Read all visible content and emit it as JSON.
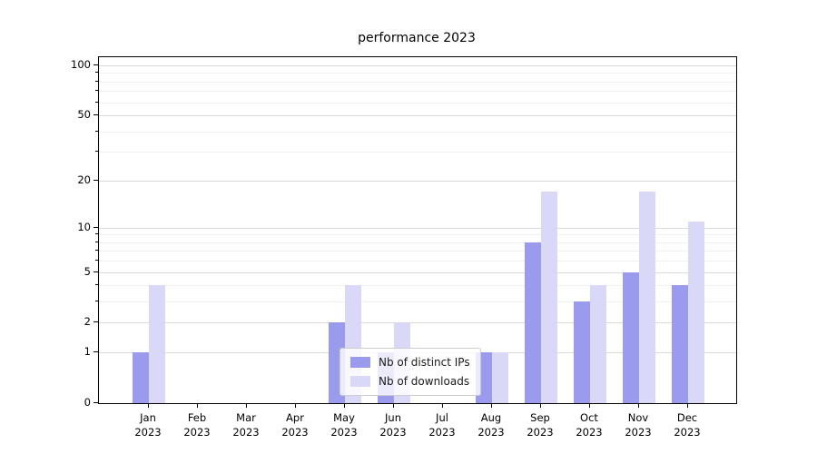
{
  "chart_data": {
    "type": "bar",
    "title": "performance 2023",
    "yscale": "log1p",
    "grid": true,
    "legend_position": "lower center",
    "ylim": [
      0,
      112
    ],
    "yticks": [
      0,
      1,
      2,
      5,
      10,
      20,
      50,
      100
    ],
    "minor_yticks": [
      3,
      4,
      6,
      7,
      8,
      9,
      30,
      40,
      60,
      70,
      80,
      90
    ],
    "categories": [
      {
        "month": "Jan",
        "year": "2023"
      },
      {
        "month": "Feb",
        "year": "2023"
      },
      {
        "month": "Mar",
        "year": "2023"
      },
      {
        "month": "Apr",
        "year": "2023"
      },
      {
        "month": "May",
        "year": "2023"
      },
      {
        "month": "Jun",
        "year": "2023"
      },
      {
        "month": "Jul",
        "year": "2023"
      },
      {
        "month": "Aug",
        "year": "2023"
      },
      {
        "month": "Sep",
        "year": "2023"
      },
      {
        "month": "Oct",
        "year": "2023"
      },
      {
        "month": "Nov",
        "year": "2023"
      },
      {
        "month": "Dec",
        "year": "2023"
      }
    ],
    "series": [
      {
        "name": "Nb of distinct IPs",
        "color": "#9b9bee",
        "values": [
          1,
          0,
          0,
          0,
          2,
          1,
          0,
          1,
          8,
          3,
          5,
          4
        ]
      },
      {
        "name": "Nb of downloads",
        "color": "#d9d9f7",
        "values": [
          4,
          0,
          0,
          0,
          4,
          2,
          0,
          1,
          17,
          4,
          17,
          11
        ]
      }
    ]
  },
  "colors": {
    "major_grid": "#d9d9d9",
    "minor_grid": "#f0f0f0",
    "spine": "#000000",
    "legend_border": "#cccccc"
  }
}
